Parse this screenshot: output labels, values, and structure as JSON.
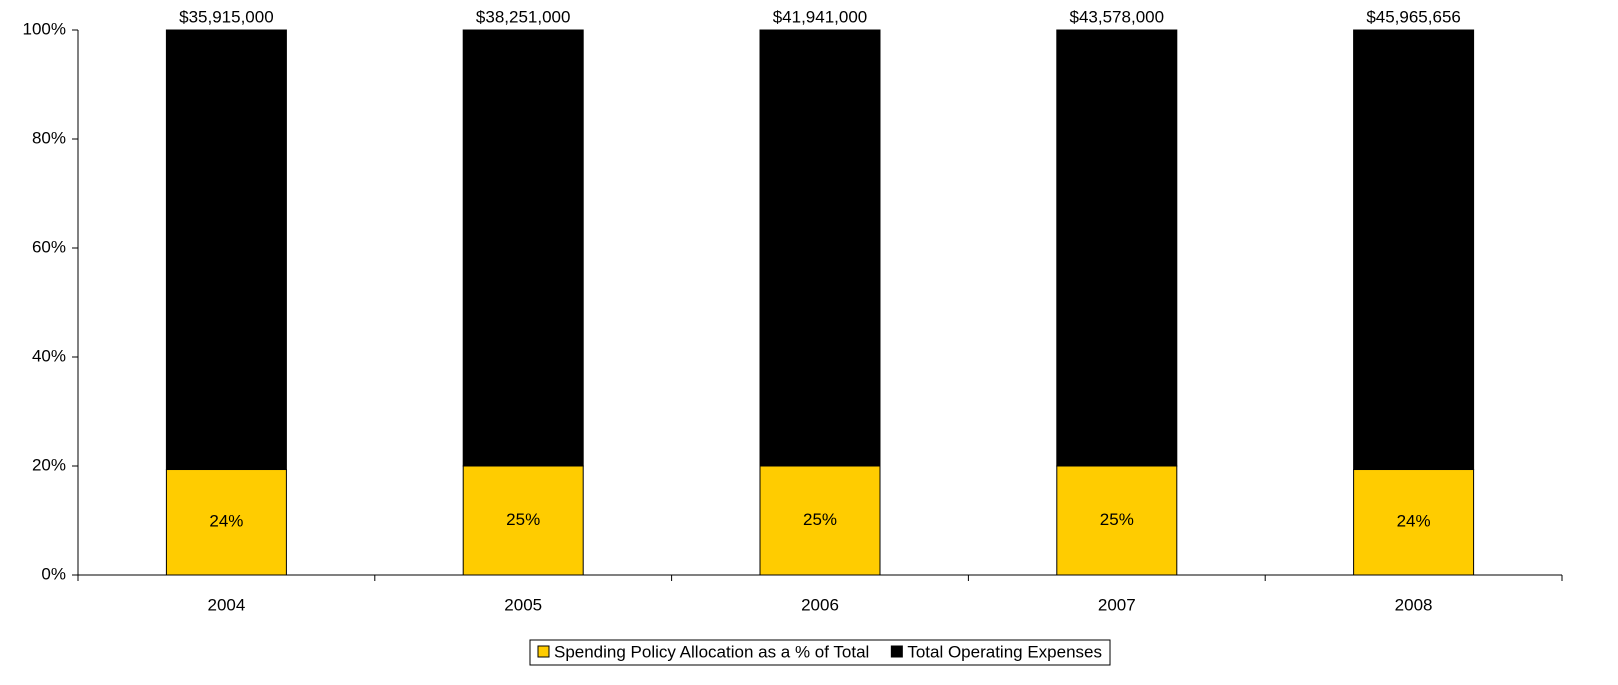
{
  "chart_data": {
    "type": "bar",
    "stacked": "percent",
    "categories": [
      "2004",
      "2005",
      "2006",
      "2007",
      "2008"
    ],
    "series": [
      {
        "name": "Spending Policy Allocation as a % of Total",
        "color": "#ffcc00",
        "values": [
          8619600,
          9562750,
          10485250,
          10894500,
          11031757
        ],
        "value_labels": [
          "24%",
          "25%",
          "25%",
          "25%",
          "24%"
        ]
      },
      {
        "name": "Total Operating Expenses",
        "color": "#000000",
        "values": [
          35915000,
          38251000,
          41941000,
          43578000,
          45965656
        ],
        "value_labels": [
          "$35,915,000",
          "$38,251,000",
          "$41,941,000",
          "$43,578,000",
          "$45,965,656"
        ]
      }
    ],
    "ylim": [
      0,
      100
    ],
    "yticks": [
      {
        "value": 0,
        "label": "0%"
      },
      {
        "value": 20,
        "label": "20%"
      },
      {
        "value": 40,
        "label": "40%"
      },
      {
        "value": 60,
        "label": "60%"
      },
      {
        "value": 80,
        "label": "80%"
      },
      {
        "value": 100,
        "label": "100%"
      }
    ],
    "grid": false,
    "legend": "bottom"
  }
}
